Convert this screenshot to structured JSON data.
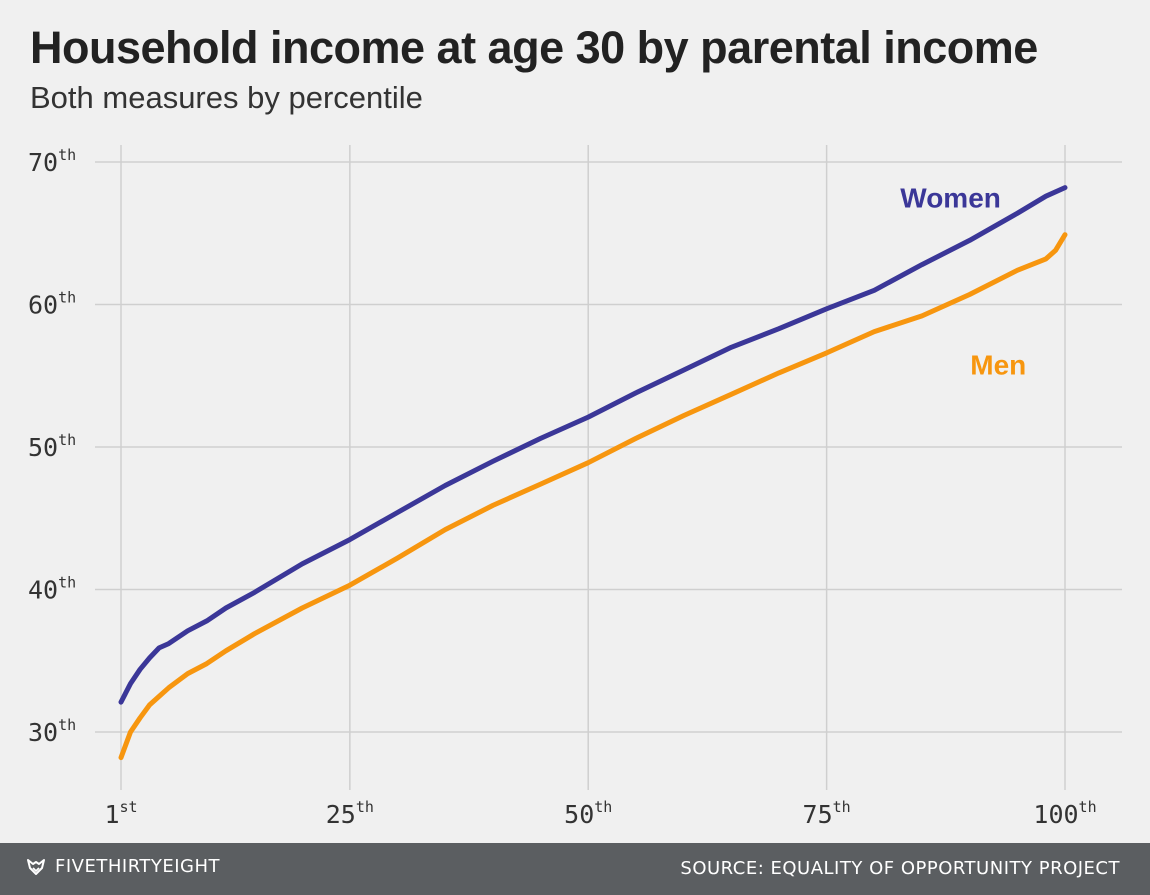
{
  "header": {
    "title": "Household income at age 30 by parental income",
    "subtitle": "Both measures by percentile"
  },
  "footer": {
    "brand": "FIVETHIRTYEIGHT",
    "brand_icon": "fox-logo-icon",
    "source": "SOURCE: EQUALITY OF OPPORTUNITY PROJECT"
  },
  "chart_data": {
    "type": "line",
    "title": "Household income at age 30 by parental income",
    "subtitle": "Both measures by percentile",
    "xlabel": "",
    "ylabel": "",
    "xlim": [
      1,
      100
    ],
    "ylim": [
      28,
      70
    ],
    "grid": true,
    "x_ticks": [
      {
        "value": 1,
        "num": "1",
        "suffix": "st"
      },
      {
        "value": 25,
        "num": "25",
        "suffix": "th"
      },
      {
        "value": 50,
        "num": "50",
        "suffix": "th"
      },
      {
        "value": 75,
        "num": "75",
        "suffix": "th"
      },
      {
        "value": 100,
        "num": "100",
        "suffix": "th"
      }
    ],
    "y_ticks": [
      {
        "value": 30,
        "num": "30",
        "suffix": "th"
      },
      {
        "value": 40,
        "num": "40",
        "suffix": "th"
      },
      {
        "value": 50,
        "num": "50",
        "suffix": "th"
      },
      {
        "value": 60,
        "num": "60",
        "suffix": "th"
      },
      {
        "value": 70,
        "num": "70",
        "suffix": "th"
      }
    ],
    "series": [
      {
        "name": "Women",
        "color": "#3b3798",
        "label_position": [
          88,
          66.8
        ],
        "x": [
          1,
          2,
          3,
          4,
          5,
          6,
          8,
          10,
          12,
          15,
          20,
          25,
          30,
          35,
          40,
          45,
          50,
          55,
          60,
          65,
          70,
          75,
          80,
          85,
          90,
          95,
          98,
          100
        ],
        "y": [
          32.1,
          33.4,
          34.4,
          35.2,
          35.9,
          36.2,
          37.1,
          37.8,
          38.7,
          39.8,
          41.8,
          43.5,
          45.4,
          47.3,
          49.0,
          50.6,
          52.1,
          53.8,
          55.4,
          57.0,
          58.3,
          59.7,
          61.0,
          62.8,
          64.5,
          66.4,
          67.6,
          68.2
        ]
      },
      {
        "name": "Men",
        "color": "#f7960f",
        "label_position": [
          93,
          55.1
        ],
        "x": [
          1,
          2,
          3,
          4,
          5,
          6,
          8,
          10,
          12,
          15,
          20,
          25,
          30,
          35,
          40,
          45,
          50,
          55,
          60,
          65,
          70,
          75,
          80,
          85,
          90,
          95,
          98,
          99,
          100
        ],
        "y": [
          28.2,
          30.0,
          31.0,
          31.9,
          32.5,
          33.1,
          34.1,
          34.8,
          35.7,
          36.9,
          38.7,
          40.3,
          42.2,
          44.2,
          45.9,
          47.4,
          48.9,
          50.6,
          52.2,
          53.7,
          55.2,
          56.6,
          58.1,
          59.2,
          60.7,
          62.4,
          63.2,
          63.8,
          64.9
        ]
      }
    ]
  }
}
